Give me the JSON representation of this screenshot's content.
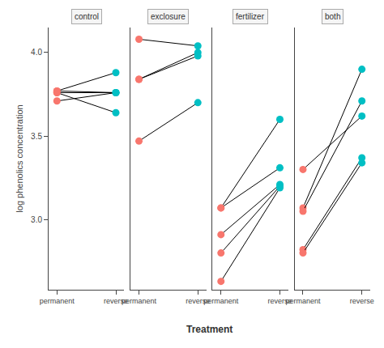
{
  "chart_data": {
    "type": "slope",
    "xlabel": "Treatment",
    "ylabel": "log phenolics concentration",
    "categories": [
      "permanent",
      "reverse"
    ],
    "colors": [
      "#F8766D",
      "#00BFC4"
    ],
    "color": "black",
    "ylim": [
      2.58,
      4.15
    ],
    "yticks": [
      {
        "value": 3,
        "label": "3.0"
      },
      3.5,
      {
        "value": 4,
        "label": "4.0"
      }
    ],
    "grid": false,
    "panels": [
      {
        "title": "control",
        "series": [
          {
            "values": [
              3.77,
              3.88
            ]
          },
          {
            "values": [
              3.77,
              3.76
            ]
          },
          {
            "values": [
              3.76,
              3.64
            ]
          },
          {
            "values": [
              3.76,
              3.76
            ]
          },
          {
            "values": [
              3.71,
              3.76
            ]
          }
        ]
      },
      {
        "title": "exclosure",
        "series": [
          {
            "values": [
              4.08,
              4.04
            ]
          },
          {
            "values": [
              3.84,
              4.0
            ]
          },
          {
            "values": [
              3.84,
              3.98
            ]
          },
          {
            "values": [
              3.47,
              3.7
            ]
          }
        ]
      },
      {
        "title": "fertilizer",
        "series": [
          {
            "values": [
              3.07,
              3.6
            ]
          },
          {
            "values": [
              3.07,
              3.31
            ]
          },
          {
            "values": [
              2.91,
              3.21
            ]
          },
          {
            "values": [
              2.8,
              3.2
            ]
          },
          {
            "values": [
              2.63,
              3.19
            ]
          }
        ]
      },
      {
        "title": "both",
        "series": [
          {
            "values": [
              3.07,
              3.9
            ]
          },
          {
            "values": [
              3.05,
              3.71
            ]
          },
          {
            "values": [
              3.3,
              3.62
            ]
          },
          {
            "values": [
              2.82,
              3.37
            ]
          },
          {
            "values": [
              2.8,
              3.34
            ]
          }
        ]
      }
    ]
  }
}
